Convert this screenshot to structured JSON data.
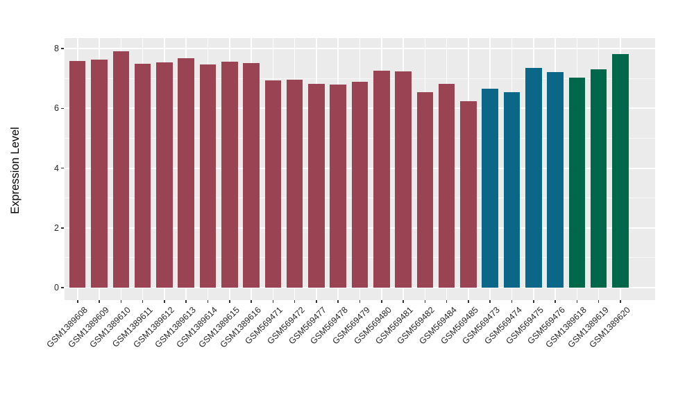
{
  "chart_data": {
    "type": "bar",
    "title": "",
    "xlabel": "",
    "ylabel": "Expression Level",
    "ylim": [
      0,
      8.35
    ],
    "yticks": [
      0,
      2,
      4,
      6,
      8
    ],
    "yticks_minor": [
      1,
      3,
      5,
      7
    ],
    "grid": true,
    "legend": false,
    "panel_bg": "#EBEBEB",
    "grid_color": "#FFFFFF",
    "axis_text_color": "#262626",
    "categories": [
      "GSM1389608",
      "GSM1389609",
      "GSM1389610",
      "GSM1389611",
      "GSM1389612",
      "GSM1389613",
      "GSM1389614",
      "GSM1389615",
      "GSM1389616",
      "GSM569471",
      "GSM569472",
      "GSM569477",
      "GSM569478",
      "GSM569479",
      "GSM569480",
      "GSM569481",
      "GSM569482",
      "GSM569484",
      "GSM569485",
      "GSM569473",
      "GSM569474",
      "GSM569475",
      "GSM569476",
      "GSM1389618",
      "GSM1389619",
      "GSM1389620"
    ],
    "values": [
      7.59,
      7.62,
      7.91,
      7.5,
      7.53,
      7.68,
      7.46,
      7.57,
      7.51,
      6.94,
      6.95,
      6.82,
      6.8,
      6.88,
      7.26,
      7.24,
      6.54,
      6.81,
      6.24,
      6.66,
      6.54,
      7.35,
      7.21,
      7.03,
      7.3,
      7.82
    ],
    "colors": [
      "#9A4352",
      "#9A4352",
      "#9A4352",
      "#9A4352",
      "#9A4352",
      "#9A4352",
      "#9A4352",
      "#9A4352",
      "#9A4352",
      "#9A4352",
      "#9A4352",
      "#9A4352",
      "#9A4352",
      "#9A4352",
      "#9A4352",
      "#9A4352",
      "#9A4352",
      "#9A4352",
      "#9A4352",
      "#0A6787",
      "#0A6787",
      "#0A6787",
      "#0A6787",
      "#00684A",
      "#00684A",
      "#00684A"
    ],
    "group_colors": {
      "group_1": "#9A4352",
      "group_2": "#0A6787",
      "group_3": "#00684A"
    }
  }
}
